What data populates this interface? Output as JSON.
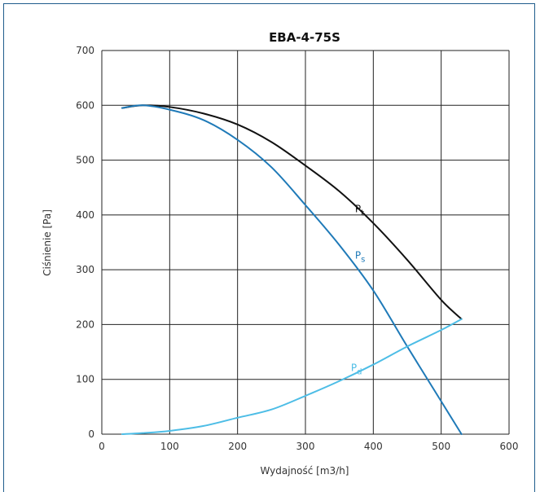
{
  "chart_data": {
    "type": "line",
    "title": "EBA-4-75S",
    "xlabel": "Wydajność [m3/h]",
    "ylabel": "Ciśnienie [Pa]",
    "xlim": [
      0,
      600
    ],
    "ylim": [
      0,
      700
    ],
    "xticks": [
      "0",
      "100",
      "200",
      "300",
      "400",
      "500",
      "600"
    ],
    "yticks": [
      "0",
      "100",
      "200",
      "300",
      "400",
      "500",
      "600",
      "700"
    ],
    "grid": true,
    "series": [
      {
        "name": "Pt",
        "label_main": "P",
        "label_sub": "t",
        "color": "#111111",
        "x": [
          30,
          60,
          100,
          150,
          200,
          250,
          300,
          350,
          400,
          450,
          500,
          530
        ],
        "y": [
          595,
          600,
          597,
          585,
          565,
          533,
          490,
          443,
          385,
          318,
          245,
          210
        ]
      },
      {
        "name": "Ps",
        "label_main": "P",
        "label_sub": "s",
        "color": "#1f7ab8",
        "x": [
          30,
          60,
          100,
          150,
          200,
          250,
          300,
          350,
          400,
          450,
          500,
          530
        ],
        "y": [
          595,
          600,
          592,
          573,
          537,
          487,
          418,
          345,
          262,
          160,
          60,
          0
        ]
      },
      {
        "name": "Pd",
        "label_main": "P",
        "label_sub": "d",
        "color": "#4dbde6",
        "x": [
          30,
          60,
          100,
          150,
          200,
          250,
          300,
          350,
          400,
          450,
          500,
          530
        ],
        "y": [
          0,
          2,
          6,
          15,
          30,
          45,
          70,
          97,
          127,
          160,
          190,
          210
        ]
      }
    ]
  }
}
